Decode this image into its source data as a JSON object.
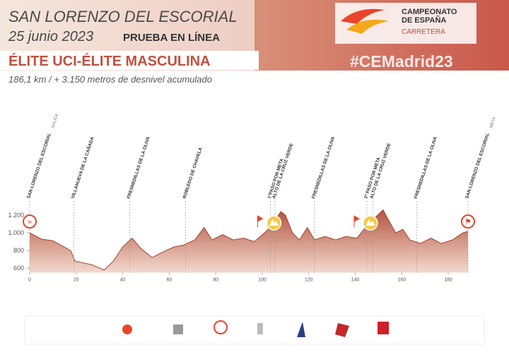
{
  "header": {
    "title": "SAN LORENZO DEL ESCORIAL",
    "date": "25 junio 2023",
    "race_type": "PRUEBA EN LÍNEA",
    "category": "ÉLITE UCI-ÉLITE MASCULINA",
    "details": "186,1 km / + 3.150 metros de desnivel acumulado",
    "hashtag": "#CEMadrid23",
    "logo_line1": "CAMPEONATO",
    "logo_line2": "DE ESPAÑA",
    "logo_line3": "CARRETERA"
  },
  "chart_data": {
    "type": "area",
    "color": "#b5553e",
    "x": [
      0,
      5,
      10,
      17.6,
      19.5,
      26.7,
      32,
      36,
      40,
      44,
      48,
      52.6,
      57,
      62,
      66,
      71,
      75,
      78.4,
      83,
      87.5,
      92,
      96.6,
      101,
      104,
      108,
      110,
      113,
      116,
      119.4,
      122.5,
      127,
      131.6,
      136,
      140.7,
      145,
      148,
      152,
      154,
      157.4,
      160.5,
      163.5,
      168,
      172.6,
      177,
      181.8,
      186.3,
      188.5
    ],
    "values": [
      1000,
      930,
      910,
      800,
      680,
      640,
      580,
      680,
      840,
      940,
      820,
      720,
      780,
      840,
      860,
      920,
      1060,
      920,
      980,
      920,
      940,
      900,
      1000,
      1080,
      1240,
      1200,
      1000,
      920,
      1060,
      920,
      960,
      920,
      960,
      940,
      1080,
      1160,
      1260,
      1160,
      1000,
      1040,
      920,
      880,
      940,
      880,
      920,
      1000,
      1016
    ],
    "xlim": [
      0,
      188.5
    ],
    "ylim": [
      550,
      1300
    ],
    "xticks": [
      0,
      20,
      40,
      60,
      80,
      100,
      120,
      140,
      160,
      180
    ],
    "yticks": [
      600,
      800,
      {
        "value": 1000,
        "label": "1.000"
      },
      {
        "value": 1200,
        "label": "1.200"
      }
    ],
    "waypoints": [
      {
        "km": 0,
        "label": "SAN LORENZO DEL ESCORIAL",
        "note": "SALIDA"
      },
      {
        "km": 19,
        "label": "VILLANUEVA DE LA CAÑADA"
      },
      {
        "km": 43,
        "label": "FRESNEDILLAS DE LA OLIVA"
      },
      {
        "km": 67,
        "label": "ROBLEDO DE CHAVELA"
      },
      {
        "km": 103.5,
        "label": "1ºPASO POR META"
      },
      {
        "km": 105.5,
        "label": "ALTO DE LA CRUZ VERDE"
      },
      {
        "km": 122.5,
        "label": "FRESNEDILLAS DE LA OLIVA"
      },
      {
        "km": 145,
        "label": "2º PASO POR META"
      },
      {
        "km": 147.5,
        "label": "ALTO DE LA CRUZ VERDE"
      },
      {
        "km": 166.5,
        "label": "FRESNEDILLAS DE LA OLIVA"
      },
      {
        "km": 188.5,
        "label": "SAN LORENZO DEL ESCORIAL",
        "note": "META"
      }
    ]
  }
}
